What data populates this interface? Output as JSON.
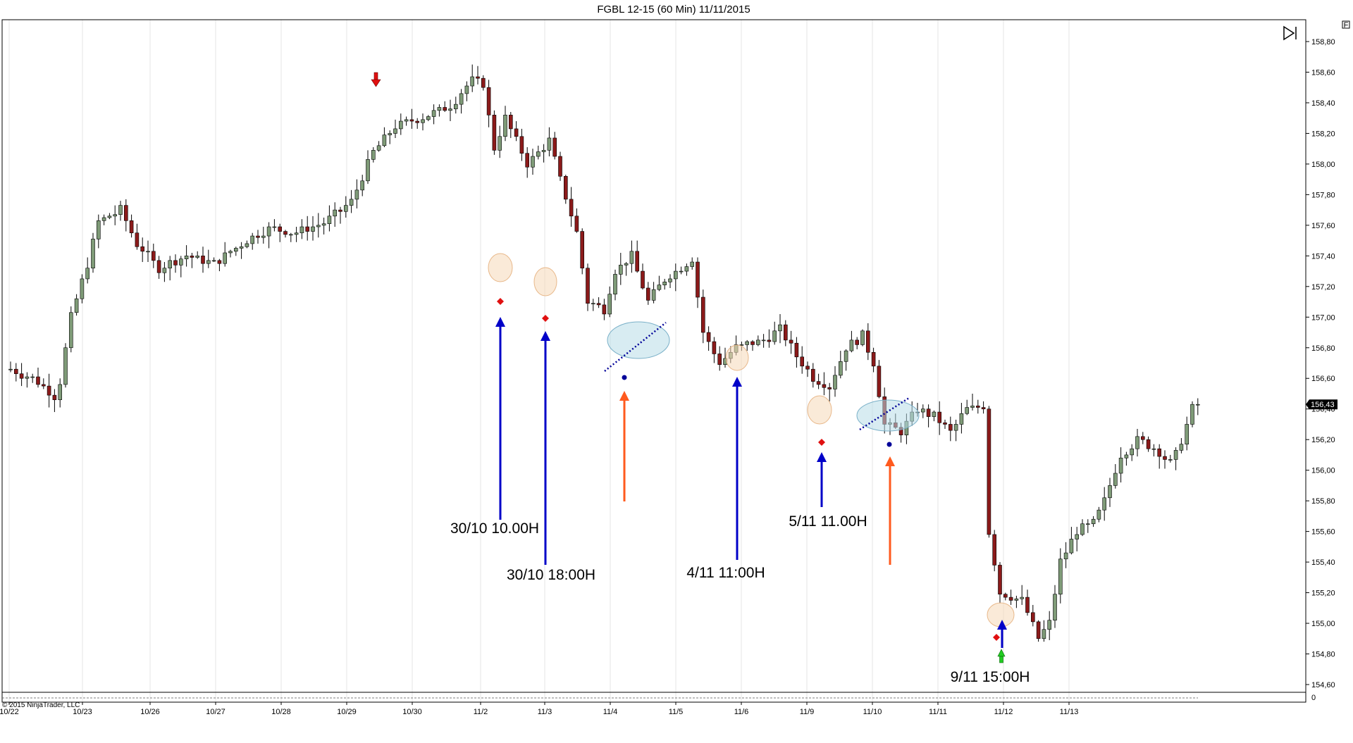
{
  "window": {
    "title": "FGBL 12-15 (60 Min)  11/11/2015",
    "copyright": "© 2015 NinjaTrader, LLC",
    "panel_badge": "F",
    "last_price_label": "156,43",
    "volume_axis_zero": "0"
  },
  "colors": {
    "up_candle": "#7f9b78",
    "down_candle": "#8b1a1a",
    "wick": "#000000",
    "grid": "#e6e6e6",
    "blue_arrow": "#0000c8",
    "orange_arrow": "#ff5a1e",
    "red_marker": "#e01010",
    "green_marker": "#22cc22",
    "blue_dot": "#000099",
    "ellipse_orange": "#f5d9b8",
    "ellipse_blue": "#b8dce8"
  },
  "chart_data": {
    "type": "candlestick",
    "title": "FGBL 12-15 (60 Min)  11/11/2015",
    "ylim": [
      154.5,
      158.95
    ],
    "y_ticks": [
      "158,80",
      "158,60",
      "158,40",
      "158,20",
      "158,00",
      "157,80",
      "157,60",
      "157,40",
      "157,20",
      "157,00",
      "156,80",
      "156,60",
      "156,40",
      "156,20",
      "156,00",
      "155,80",
      "155,60",
      "155,40",
      "155,20",
      "155,00",
      "154,80",
      "154,60"
    ],
    "y_tick_values": [
      158.8,
      158.6,
      158.4,
      158.2,
      158.0,
      157.8,
      157.6,
      157.4,
      157.2,
      157.0,
      156.8,
      156.6,
      156.4,
      156.2,
      156.0,
      155.8,
      155.6,
      155.4,
      155.2,
      155.0,
      154.8,
      154.6
    ],
    "x_ticks": [
      "10/22",
      "10/23",
      "10/26",
      "10/27",
      "10/28",
      "10/29",
      "10/30",
      "11/2",
      "11/3",
      "11/4",
      "11/5",
      "11/6",
      "11/9",
      "11/10",
      "11/11",
      "11/12",
      "11/13"
    ],
    "last_price": 156.43,
    "anchors": [
      [
        0,
        156.66
      ],
      [
        5,
        156.58
      ],
      [
        8,
        156.48
      ],
      [
        9,
        156.58
      ],
      [
        11,
        157.0
      ],
      [
        14,
        157.35
      ],
      [
        16,
        157.62
      ],
      [
        20,
        157.7
      ],
      [
        23,
        157.48
      ],
      [
        27,
        157.32
      ],
      [
        32,
        157.4
      ],
      [
        37,
        157.35
      ],
      [
        42,
        157.48
      ],
      [
        47,
        157.58
      ],
      [
        52,
        157.55
      ],
      [
        57,
        157.62
      ],
      [
        62,
        157.75
      ],
      [
        66,
        158.08
      ],
      [
        70,
        158.25
      ],
      [
        75,
        158.3
      ],
      [
        80,
        158.38
      ],
      [
        84,
        158.55
      ],
      [
        86,
        158.52
      ],
      [
        88,
        158.1
      ],
      [
        90,
        158.3
      ],
      [
        94,
        158.0
      ],
      [
        98,
        158.15
      ],
      [
        100,
        157.9
      ],
      [
        103,
        157.55
      ],
      [
        105,
        157.1
      ],
      [
        108,
        157.05
      ],
      [
        110,
        157.3
      ],
      [
        113,
        157.4
      ],
      [
        116,
        157.1
      ],
      [
        119,
        157.25
      ],
      [
        122,
        157.32
      ],
      [
        124,
        157.38
      ],
      [
        126,
        156.9
      ],
      [
        129,
        156.7
      ],
      [
        132,
        156.8
      ],
      [
        137,
        156.85
      ],
      [
        140,
        156.92
      ],
      [
        143,
        156.75
      ],
      [
        146,
        156.6
      ],
      [
        149,
        156.55
      ],
      [
        152,
        156.8
      ],
      [
        155,
        156.88
      ],
      [
        157,
        156.7
      ],
      [
        159,
        156.3
      ],
      [
        162,
        156.25
      ],
      [
        165,
        156.4
      ],
      [
        168,
        156.35
      ],
      [
        171,
        156.25
      ],
      [
        174,
        156.4
      ],
      [
        177,
        156.42
      ],
      [
        178,
        155.6
      ],
      [
        180,
        155.2
      ],
      [
        184,
        155.15
      ],
      [
        187,
        154.9
      ],
      [
        189,
        155.0
      ],
      [
        191,
        155.4
      ],
      [
        194,
        155.6
      ],
      [
        197,
        155.65
      ],
      [
        199,
        155.8
      ],
      [
        202,
        156.1
      ],
      [
        205,
        156.2
      ],
      [
        208,
        156.15
      ],
      [
        211,
        156.05
      ],
      [
        212,
        156.1
      ],
      [
        215,
        156.4
      ],
      [
        216,
        156.43
      ]
    ],
    "bars": [],
    "annotations": [
      {
        "text": "30/10 10.00H"
      },
      {
        "text": "30/10 18:00H"
      },
      {
        "text": "4/11 11:00H"
      },
      {
        "text": "5/11 11.00H"
      },
      {
        "text": "9/11 15:00H"
      }
    ]
  }
}
